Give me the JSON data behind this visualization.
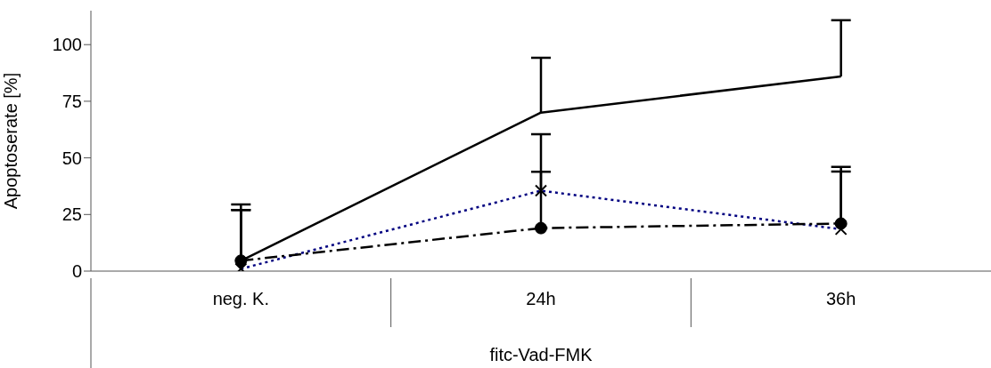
{
  "chart_data": {
    "type": "line",
    "ylabel": "Apoptoserate [%]",
    "xlabel": "fitc-Vad-FMK",
    "categories": [
      "neg. K.",
      "24h",
      "36h"
    ],
    "ylim": [
      0,
      115
    ],
    "yticks": [
      0,
      25,
      50,
      75,
      100
    ],
    "grid": false,
    "series": [
      {
        "color": "#000000",
        "values": [
          4.6,
          70,
          86
        ],
        "errors": [
          [
            4.6,
            29.4
          ],
          [
            70,
            94.2
          ],
          [
            86,
            110.8
          ]
        ],
        "marker": "none",
        "line_style": "solid"
      },
      {
        "color": "#000080",
        "values": [
          1,
          35.5,
          18.5
        ],
        "errors": [
          [
            1,
            27
          ],
          [
            35.5,
            60.4
          ],
          [
            18.5,
            44
          ]
        ],
        "marker": "cross",
        "line_style": "dotted"
      },
      {
        "color": "#000000",
        "values": [
          4.6,
          19,
          21
        ],
        "errors": [
          [
            4.6,
            27
          ],
          [
            19,
            43.9
          ],
          [
            21,
            46
          ]
        ],
        "marker": "circle",
        "line_style": "dashed"
      }
    ]
  }
}
